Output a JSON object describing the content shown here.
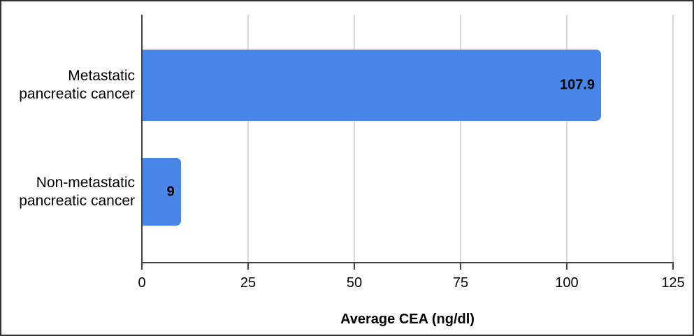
{
  "chart_data": {
    "type": "bar",
    "orientation": "horizontal",
    "title": "",
    "xlabel": "Average CEA (ng/dl)",
    "ylabel": "",
    "categories": [
      "Metastatic pancreatic cancer",
      "Non-metastatic pancreatic cancer"
    ],
    "category_lines": [
      [
        "Metastatic",
        "pancreatic cancer"
      ],
      [
        "Non-metastatic",
        "pancreatic cancer"
      ]
    ],
    "values": [
      107.9,
      9
    ],
    "value_labels": [
      "107.9",
      "9"
    ],
    "xlim": [
      0,
      125
    ],
    "xticks": [
      0,
      25,
      50,
      75,
      100,
      125
    ],
    "grid": true,
    "legend": "none",
    "colors": {
      "bar": "#4a86e8",
      "gridline": "#d9d9d9",
      "axis": "#424242",
      "text": "#000000",
      "frame_border": "#333333",
      "background": "#ffffff"
    }
  }
}
